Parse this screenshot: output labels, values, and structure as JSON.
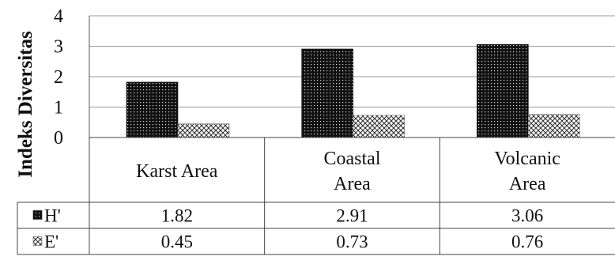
{
  "chart_data": {
    "type": "bar",
    "ylabel": "Indeks Diversitas",
    "ylim": [
      0,
      4
    ],
    "yticks": [
      "0",
      "1",
      "2",
      "3",
      "4"
    ],
    "categories": [
      [
        "Karst Area"
      ],
      [
        "Coastal",
        "Area"
      ],
      [
        "Volcanic",
        "Area"
      ]
    ],
    "series": [
      {
        "name": "H'",
        "values": [
          1.82,
          2.91,
          3.06
        ],
        "display": [
          "1.82",
          "2.91",
          "3.06"
        ],
        "color": "#111111",
        "pattern": "dense-dots"
      },
      {
        "name": "E'",
        "values": [
          0.45,
          0.73,
          0.76
        ],
        "display": [
          "0.45",
          "0.73",
          "0.76"
        ],
        "color": "#555555",
        "pattern": "cross-hatch"
      }
    ],
    "grid": true,
    "legend": "data-table"
  }
}
